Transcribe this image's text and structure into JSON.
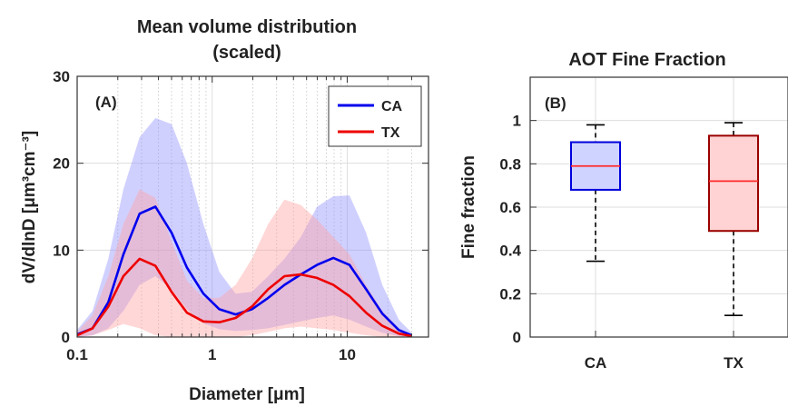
{
  "chart_data": [
    {
      "type": "line",
      "panel_label": "(A)",
      "title": "Mean volume distribution",
      "subtitle": "(scaled)",
      "xlabel": "Diameter [μm]",
      "ylabel": "dV/dlnD [μm³cm⁻³]",
      "xscale": "log",
      "xlim": [
        0.1,
        40
      ],
      "ylim": [
        0,
        30
      ],
      "xticks": [
        0.1,
        1,
        10
      ],
      "xtick_labels": [
        "0.1",
        "1",
        "10"
      ],
      "yticks": [
        0,
        10,
        20,
        30
      ],
      "ytick_labels": [
        "0",
        "10",
        "20",
        "30"
      ],
      "grid": true,
      "legend": "top-right",
      "x": [
        0.1,
        0.13,
        0.17,
        0.22,
        0.29,
        0.38,
        0.5,
        0.65,
        0.86,
        1.13,
        1.49,
        1.97,
        2.6,
        3.43,
        4.53,
        5.98,
        7.9,
        10.4,
        13.8,
        18.2,
        24.1,
        30
      ],
      "series": [
        {
          "name": "CA",
          "color": "#0000ee",
          "band_color": "#8f8fff",
          "mean": [
            0.3,
            1.0,
            4.0,
            9.5,
            14.2,
            15.0,
            12.0,
            8.0,
            5.0,
            3.2,
            2.6,
            3.2,
            4.5,
            6.0,
            7.2,
            8.3,
            9.1,
            8.3,
            5.5,
            2.7,
            0.8,
            0.2
          ],
          "lower": [
            0.0,
            0.2,
            1.0,
            3.0,
            6.0,
            7.0,
            5.5,
            3.2,
            1.6,
            0.9,
            0.7,
            0.8,
            1.0,
            1.4,
            1.8,
            2.2,
            2.5,
            2.0,
            1.2,
            0.5,
            0.1,
            0.0
          ],
          "upper": [
            0.8,
            3.0,
            9.0,
            17.0,
            23.0,
            25.2,
            24.5,
            20.0,
            13.0,
            7.5,
            5.0,
            5.2,
            7.0,
            9.0,
            11.5,
            15.0,
            16.2,
            16.3,
            12.0,
            6.0,
            2.0,
            0.5
          ]
        },
        {
          "name": "TX",
          "color": "#ee0000",
          "band_color": "#ff9f9f",
          "mean": [
            0.2,
            1.0,
            3.5,
            7.0,
            9.0,
            8.2,
            5.2,
            2.8,
            1.8,
            1.7,
            2.2,
            3.5,
            5.5,
            7.0,
            7.2,
            6.8,
            6.0,
            4.7,
            2.8,
            1.3,
            0.4,
            0.1
          ],
          "lower": [
            0.0,
            0.2,
            0.8,
            1.5,
            1.0,
            0.2,
            0.0,
            0.0,
            0.0,
            0.0,
            0.0,
            0.2,
            0.6,
            1.0,
            1.2,
            1.0,
            0.8,
            0.5,
            0.2,
            0.0,
            0.0,
            0.0
          ],
          "upper": [
            0.6,
            2.5,
            7.0,
            13.0,
            17.0,
            16.0,
            11.0,
            6.5,
            4.5,
            4.5,
            6.0,
            9.0,
            13.0,
            15.8,
            15.2,
            13.5,
            11.5,
            9.5,
            6.0,
            3.0,
            1.0,
            0.3
          ]
        }
      ]
    },
    {
      "type": "box",
      "panel_label": "(B)",
      "title": "AOT Fine Fraction",
      "xlabel": "",
      "ylabel": "Fine fraction",
      "ylim": [
        0,
        1.2
      ],
      "yticks": [
        0,
        0.2,
        0.4,
        0.6,
        0.8,
        1
      ],
      "ytick_labels": [
        "0",
        "0.2",
        "0.4",
        "0.6",
        "0.8",
        "1"
      ],
      "grid": true,
      "categories": [
        "CA",
        "TX"
      ],
      "boxes": [
        {
          "name": "CA",
          "whisker_low": 0.35,
          "q1": 0.68,
          "median": 0.79,
          "q3": 0.9,
          "whisker_high": 0.98,
          "edge_color": "#0000dd",
          "fill_color": "#cfd3ff",
          "median_color": "#ff2a2a"
        },
        {
          "name": "TX",
          "whisker_low": 0.1,
          "q1": 0.49,
          "median": 0.72,
          "q3": 0.93,
          "whisker_high": 0.99,
          "edge_color": "#9a0000",
          "fill_color": "#ffd3d3",
          "median_color": "#ff2a2a"
        }
      ]
    }
  ]
}
